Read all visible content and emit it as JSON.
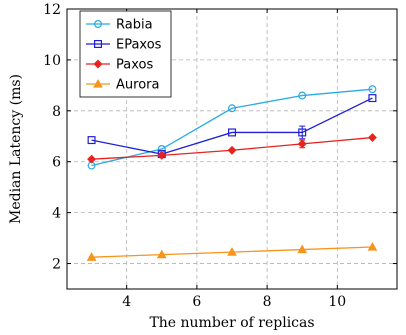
{
  "chart_data": {
    "type": "line",
    "xlabel": "The number of replicas",
    "ylabel": "Median Latency (ms)",
    "xlim": [
      2.3,
      11.7
    ],
    "ylim": [
      1,
      12
    ],
    "xticks": [
      4,
      6,
      8,
      10
    ],
    "yticks": [
      2,
      4,
      6,
      8,
      10,
      12
    ],
    "grid": true,
    "legend_position": "top-left",
    "x": [
      3,
      5,
      7,
      9,
      11
    ],
    "series": [
      {
        "name": "Rabia",
        "values": [
          5.85,
          6.5,
          8.1,
          8.6,
          8.85
        ],
        "color": "#29abe2",
        "marker": "circle"
      },
      {
        "name": "EPaxos",
        "values": [
          6.85,
          6.3,
          7.15,
          7.15,
          8.5
        ],
        "color": "#1f1fd6",
        "marker": "square",
        "error": [
          0,
          0,
          0,
          0.25,
          0
        ]
      },
      {
        "name": "Paxos",
        "values": [
          6.1,
          6.25,
          6.45,
          6.7,
          6.95
        ],
        "color": "#e8231f",
        "marker": "diamond",
        "error": [
          0,
          0,
          0,
          0.15,
          0
        ]
      },
      {
        "name": "Aurora",
        "values": [
          2.25,
          2.35,
          2.45,
          2.55,
          2.65
        ],
        "color": "#f7941d",
        "marker": "triangle"
      }
    ]
  }
}
